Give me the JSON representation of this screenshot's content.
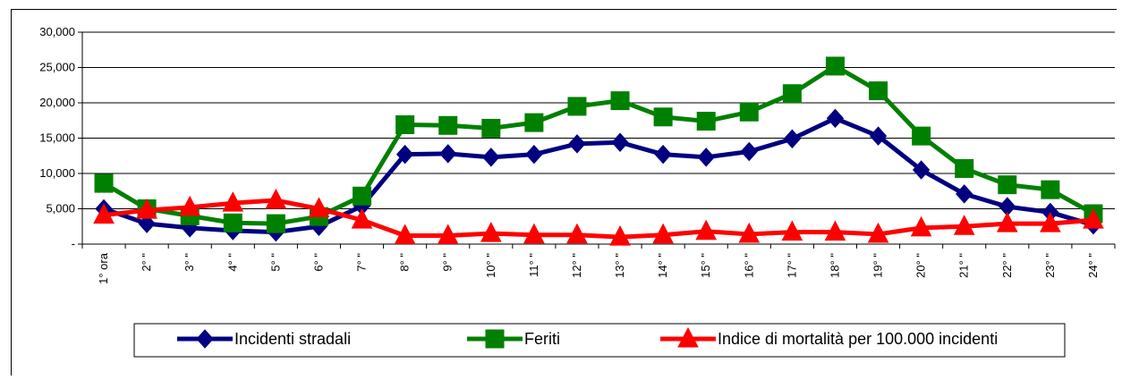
{
  "chart_data": {
    "type": "line",
    "categories": [
      "1° ora",
      "2° \"",
      "3° \"",
      "4° \"",
      "5° \"",
      "6° \"",
      "7° \"",
      "8° \"",
      "9° \"",
      "10° \"",
      "11° \"",
      "12° \"",
      "13° \"",
      "14° \"",
      "15° \"",
      "16° \"",
      "17° \"",
      "18° \"",
      "19° \"",
      "20° \"",
      "21° \"",
      "22° \"",
      "23° \"",
      "24° \""
    ],
    "y_tick_labels": [
      "-",
      "5,000",
      "10,000",
      "15,000",
      "20,000",
      "25,000",
      "30,000"
    ],
    "y_ticks": [
      0,
      5000,
      10000,
      15000,
      20000,
      25000,
      30000
    ],
    "ylim": [
      0,
      30000
    ],
    "grid": true,
    "legend_position": "bottom",
    "series": [
      {
        "name": "Incidenti stradali",
        "color": "#000080",
        "marker": "diamond",
        "values": [
          5000,
          2900,
          2300,
          1900,
          1700,
          2500,
          5400,
          12700,
          12800,
          12300,
          12700,
          14200,
          14400,
          12700,
          12300,
          13100,
          14900,
          17800,
          15300,
          10500,
          7100,
          5300,
          4500,
          2700
        ]
      },
      {
        "name": "Feriti",
        "color": "#008000",
        "marker": "square",
        "values": [
          8600,
          5000,
          4000,
          3000,
          2900,
          3900,
          6800,
          16900,
          16800,
          16400,
          17200,
          19500,
          20300,
          18000,
          17400,
          18700,
          21300,
          25200,
          21700,
          15300,
          10700,
          8400,
          7700,
          4300
        ]
      },
      {
        "name": "Indice di mortalità per 100.000 incidenti",
        "color": "#ff0000",
        "marker": "triangle",
        "values": [
          4100,
          4800,
          5200,
          5800,
          6200,
          5000,
          3400,
          1200,
          1200,
          1500,
          1300,
          1300,
          1000,
          1300,
          1800,
          1400,
          1700,
          1700,
          1400,
          2300,
          2500,
          2900,
          2900,
          3400
        ]
      }
    ]
  }
}
